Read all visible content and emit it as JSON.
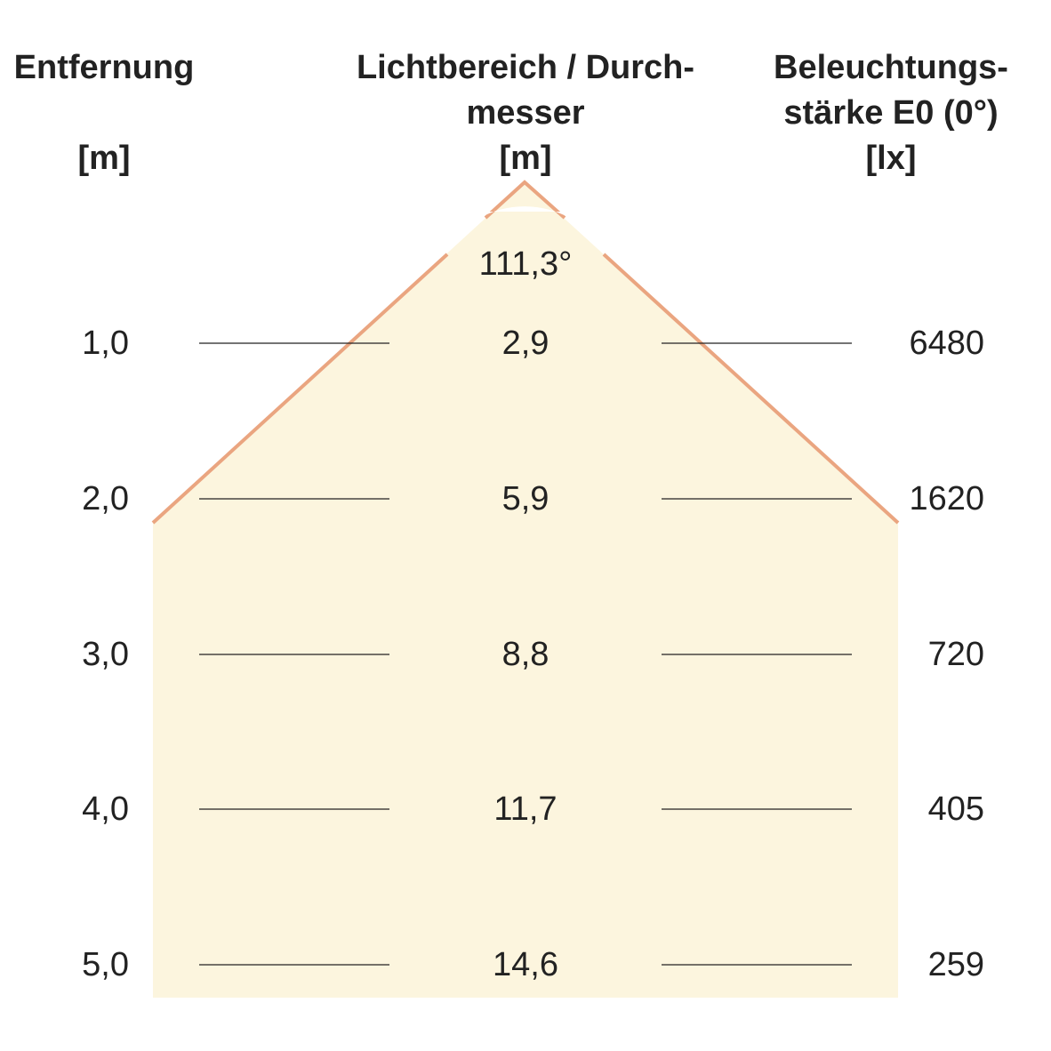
{
  "headers": {
    "distance": {
      "line1": "Entfernung",
      "unit": "[m]"
    },
    "diameter": {
      "line1": "Lichtbereich / Durch-",
      "line2": "messer",
      "unit": "[m]"
    },
    "illuminance": {
      "line1": "Beleuchtungs-",
      "line2": "stärke E0 (0°)",
      "unit": "[lx]"
    }
  },
  "beam_angle": "111,3°",
  "rows": [
    {
      "distance": "1,0",
      "diameter": "2,9",
      "illuminance": "6480"
    },
    {
      "distance": "2,0",
      "diameter": "5,9",
      "illuminance": "1620"
    },
    {
      "distance": "3,0",
      "diameter": "8,8",
      "illuminance": "720"
    },
    {
      "distance": "4,0",
      "diameter": "11,7",
      "illuminance": "405"
    },
    {
      "distance": "5,0",
      "diameter": "14,6",
      "illuminance": "259"
    }
  ],
  "colors": {
    "beam_fill": "#fcf5de",
    "beam_edge": "#eaa580",
    "text": "#222222"
  }
}
